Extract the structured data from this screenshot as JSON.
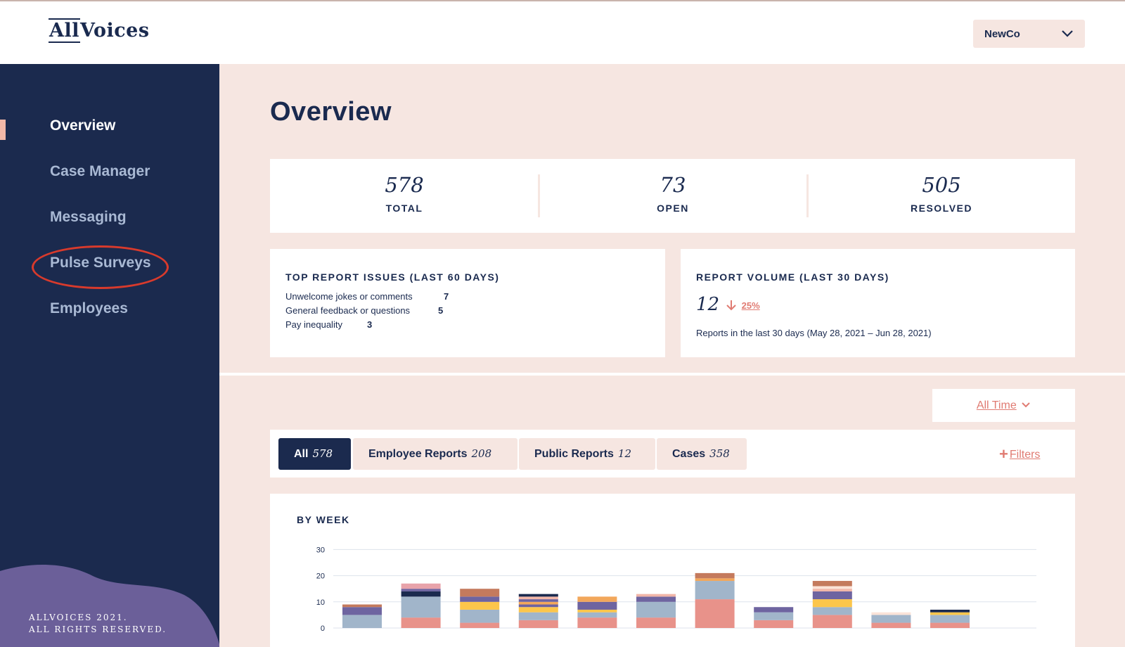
{
  "header": {
    "logo_text": "AllVoices",
    "org_select_value": "NewCo"
  },
  "sidebar": {
    "items": [
      {
        "label": "Overview",
        "active": true
      },
      {
        "label": "Case Manager",
        "active": false
      },
      {
        "label": "Messaging",
        "active": false
      },
      {
        "label": "Pulse Surveys",
        "active": false,
        "circled": true
      },
      {
        "label": "Employees",
        "active": false
      }
    ],
    "footer_line1": "ALLVOICES 2021.",
    "footer_line2": "ALL RIGHTS RESERVED."
  },
  "main": {
    "title": "Overview",
    "stats": [
      {
        "value": "578",
        "label": "TOTAL"
      },
      {
        "value": "73",
        "label": "OPEN"
      },
      {
        "value": "505",
        "label": "RESOLVED"
      }
    ],
    "top_issues": {
      "title": "TOP REPORT ISSUES (LAST 60 DAYS)",
      "items": [
        {
          "label": "Unwelcome jokes or comments",
          "count": "7"
        },
        {
          "label": "General feedback or questions",
          "count": "5"
        },
        {
          "label": "Pay inequality",
          "count": "3"
        }
      ]
    },
    "report_volume": {
      "title": "REPORT VOLUME (LAST 30 DAYS)",
      "value": "12",
      "change": "25%",
      "note": "Reports in the last 30 days (May 28, 2021 – Jun 28, 2021)"
    },
    "time_filter": "All Time",
    "tabs": [
      {
        "label": "All",
        "count": "578",
        "active": true
      },
      {
        "label": "Employee Reports",
        "count": "208",
        "active": false
      },
      {
        "label": "Public Reports",
        "count": "12",
        "active": false
      },
      {
        "label": "Cases",
        "count": "358",
        "active": false
      }
    ],
    "filters_label": "Filters"
  },
  "colors": {
    "navy": "#1b2a4e",
    "peach_bg": "#f6e6e1",
    "coral": "#e07b72",
    "annotation_red": "#d83a2c"
  },
  "chart_data": {
    "type": "bar",
    "stacked": true,
    "title": "BY WEEK",
    "ylim": [
      0,
      30
    ],
    "yticks": [
      0,
      10,
      20,
      30
    ],
    "grid": true,
    "segment_colors": [
      "#e8928a",
      "#a1b5ca",
      "#fcc64b",
      "#6e64a0",
      "#f1b6a8",
      "#1b2a4e",
      "#c47a5d",
      "#e8a3aa",
      "#f2a75b",
      "#fbe3d8"
    ],
    "bars": [
      [
        {
          "c": 1,
          "v": 5
        },
        {
          "c": 3,
          "v": 3
        },
        {
          "c": 6,
          "v": 1
        }
      ],
      [
        {
          "c": 0,
          "v": 4
        },
        {
          "c": 1,
          "v": 8
        },
        {
          "c": 5,
          "v": 2
        },
        {
          "c": 3,
          "v": 1
        },
        {
          "c": 7,
          "v": 2
        }
      ],
      [
        {
          "c": 0,
          "v": 2
        },
        {
          "c": 1,
          "v": 5
        },
        {
          "c": 2,
          "v": 3
        },
        {
          "c": 3,
          "v": 2
        },
        {
          "c": 6,
          "v": 3
        }
      ],
      [
        {
          "c": 0,
          "v": 3
        },
        {
          "c": 1,
          "v": 3
        },
        {
          "c": 2,
          "v": 2
        },
        {
          "c": 3,
          "v": 1
        },
        {
          "c": 8,
          "v": 1
        },
        {
          "c": 3,
          "v": 1
        },
        {
          "c": 4,
          "v": 1
        },
        {
          "c": 5,
          "v": 1
        }
      ],
      [
        {
          "c": 0,
          "v": 4
        },
        {
          "c": 1,
          "v": 2
        },
        {
          "c": 2,
          "v": 1
        },
        {
          "c": 3,
          "v": 3
        },
        {
          "c": 8,
          "v": 2
        }
      ],
      [
        {
          "c": 0,
          "v": 4
        },
        {
          "c": 1,
          "v": 6
        },
        {
          "c": 3,
          "v": 2
        },
        {
          "c": 4,
          "v": 1
        }
      ],
      [
        {
          "c": 0,
          "v": 11
        },
        {
          "c": 1,
          "v": 7
        },
        {
          "c": 8,
          "v": 1
        },
        {
          "c": 6,
          "v": 2
        }
      ],
      [
        {
          "c": 0,
          "v": 3
        },
        {
          "c": 1,
          "v": 3
        },
        {
          "c": 3,
          "v": 2
        }
      ],
      [
        {
          "c": 0,
          "v": 5
        },
        {
          "c": 1,
          "v": 3
        },
        {
          "c": 2,
          "v": 3
        },
        {
          "c": 3,
          "v": 3
        },
        {
          "c": 4,
          "v": 1
        },
        {
          "c": 9,
          "v": 1
        },
        {
          "c": 6,
          "v": 2
        }
      ],
      [
        {
          "c": 0,
          "v": 2
        },
        {
          "c": 1,
          "v": 3
        },
        {
          "c": 9,
          "v": 1
        }
      ],
      [
        {
          "c": 0,
          "v": 2
        },
        {
          "c": 1,
          "v": 3
        },
        {
          "c": 2,
          "v": 1
        },
        {
          "c": 5,
          "v": 1
        }
      ]
    ]
  }
}
